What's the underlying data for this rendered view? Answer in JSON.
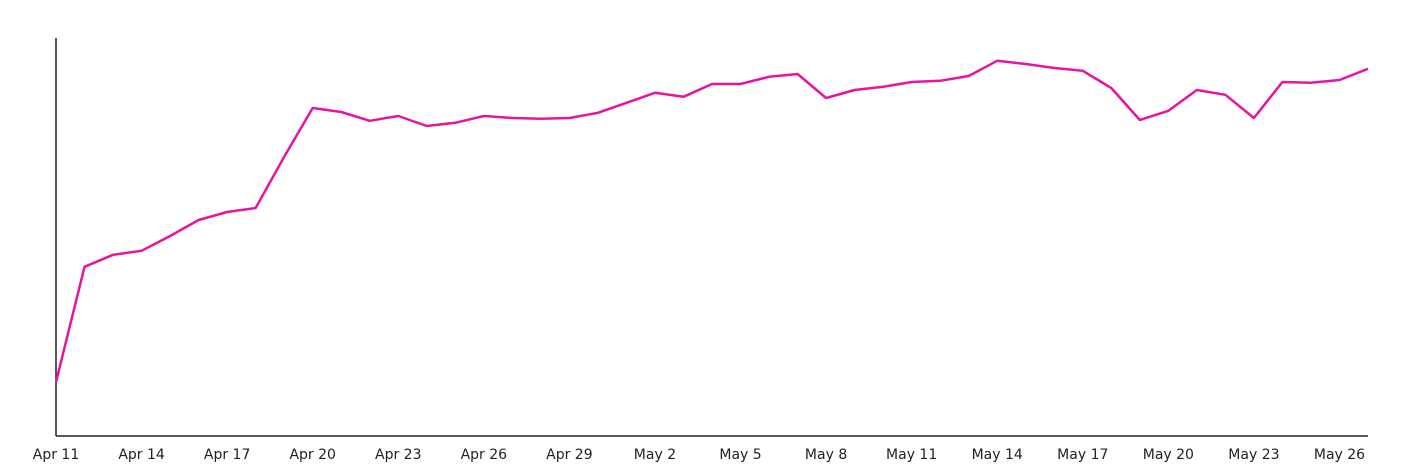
{
  "chart_data": {
    "type": "line",
    "categories": [
      "Apr 11",
      null,
      null,
      "Apr 14",
      null,
      null,
      "Apr 17",
      null,
      null,
      "Apr 20",
      null,
      null,
      "Apr 23",
      null,
      null,
      "Apr 26",
      null,
      null,
      "Apr 29",
      null,
      null,
      "May 2",
      null,
      null,
      "May 5",
      null,
      null,
      "May 8",
      null,
      null,
      "May 11",
      null,
      null,
      "May 14",
      null,
      null,
      "May 17",
      null,
      null,
      "May 20",
      null,
      null,
      "May 23",
      null,
      null,
      "May 26",
      null
    ],
    "values": [
      13.5,
      42.3,
      45.3,
      46.3,
      50,
      54,
      56,
      57,
      69.8,
      82,
      81,
      78.8,
      80,
      77.5,
      78.3,
      80,
      79.5,
      79.3,
      79.5,
      80.8,
      83.3,
      85.8,
      84.8,
      88,
      88,
      89.8,
      90.5,
      84.5,
      86.5,
      87.3,
      88.5,
      88.8,
      90,
      93.8,
      93,
      92,
      91.3,
      87,
      79,
      81.3,
      86.5,
      85.3,
      79.5,
      88.5,
      88.3,
      89,
      91.8
    ],
    "color": "#e6149f",
    "ylim": [
      0,
      100
    ]
  }
}
